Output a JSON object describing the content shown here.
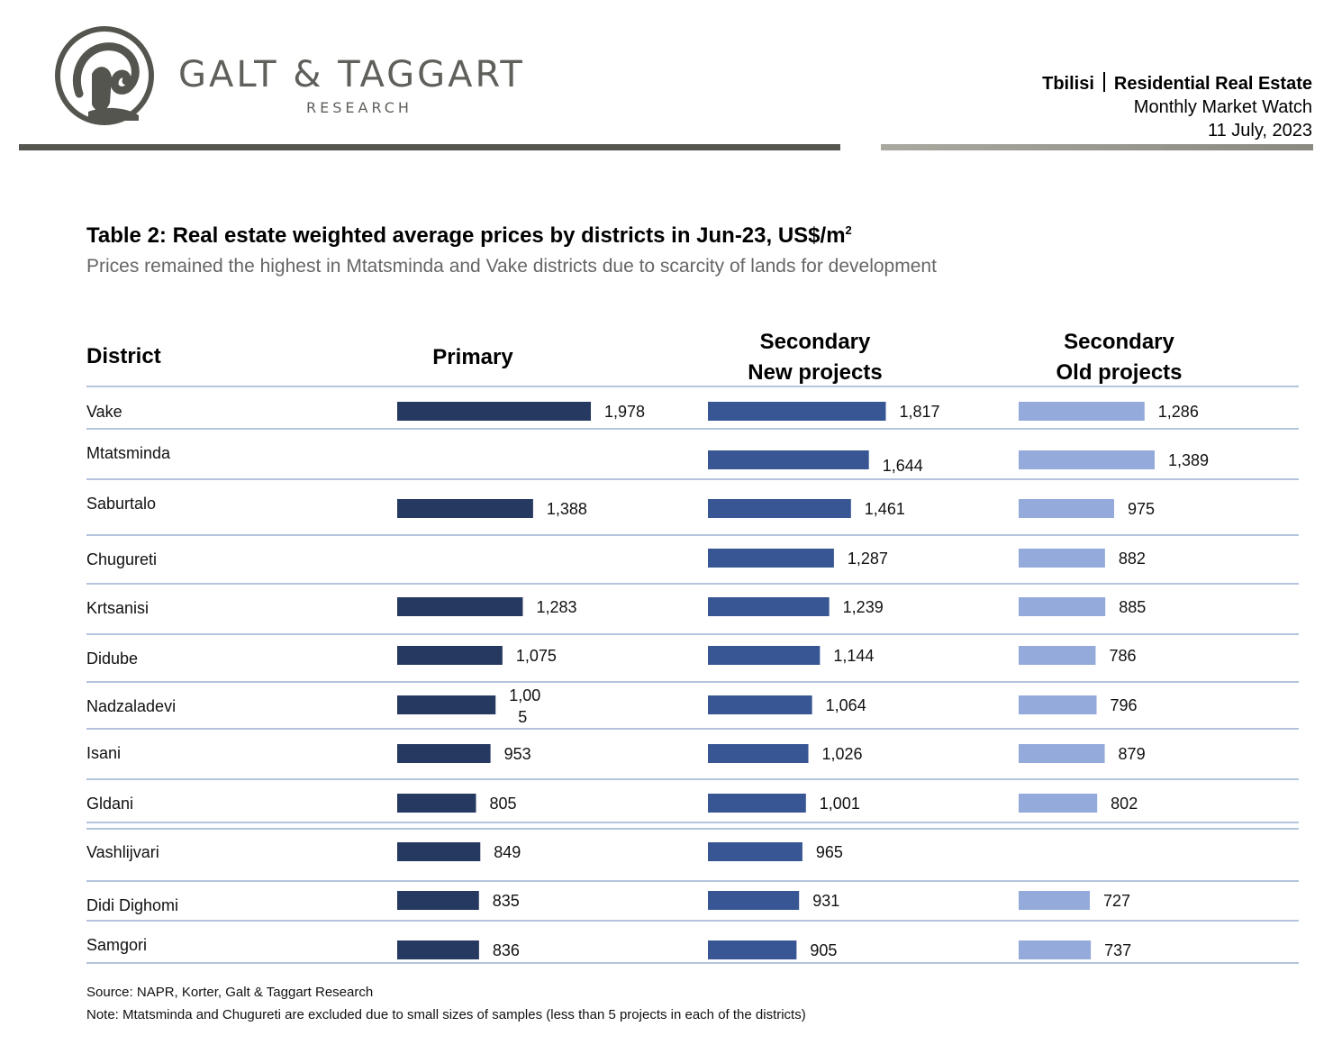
{
  "header": {
    "brand_name": "GALT & TAGGART",
    "brand_sub": "RESEARCH",
    "city": "Tbilisi",
    "report_name": "Residential Real Estate",
    "report_type": "Monthly Market Watch",
    "date": "11 July, 2023"
  },
  "colors": {
    "primary": "#253961",
    "secondary_new": "#375693",
    "secondary_old": "#93aadb",
    "row_line": "#9bb0d4"
  },
  "icons": [
    "ram-logo-icon"
  ],
  "chart_data": {
    "type": "bar",
    "title": "Table 2: Real estate weighted average prices by districts in Jun-23, US$/m",
    "title_superscript": "2",
    "subtitle": "Prices remained the highest in Mtatsminda and Vake districts due to scarcity of lands for development",
    "category_header": "District",
    "categories": [
      "Vake",
      "Mtatsminda",
      "Saburtalo",
      "Chugureti",
      "Krtsanisi",
      "Didube",
      "Nadzaladevi",
      "Isani",
      "Gldani",
      "Vashlijvari",
      "Didi Dighomi",
      "Samgori"
    ],
    "series": [
      {
        "name": "Primary",
        "values": [
          1978,
          null,
          1388,
          null,
          1283,
          1075,
          1005,
          953,
          805,
          849,
          835,
          836
        ],
        "labels": [
          "1,978",
          "",
          "1,388",
          "",
          "1,283",
          "1,075",
          "1,00\n5",
          "953",
          "805",
          "849",
          "835",
          "836"
        ]
      },
      {
        "name": "Secondary\nNew projects",
        "values": [
          1817,
          1644,
          1461,
          1287,
          1239,
          1144,
          1064,
          1026,
          1001,
          965,
          931,
          905
        ],
        "labels": [
          "1,817",
          "1,644",
          "1,461",
          "1,287",
          "1,239",
          "1,144",
          "1,064",
          "1,026",
          "1,001",
          "965",
          "931",
          "905"
        ]
      },
      {
        "name": "Secondary\nOld projects",
        "values": [
          1286,
          1389,
          975,
          882,
          885,
          786,
          796,
          879,
          802,
          null,
          727,
          737
        ],
        "labels": [
          "1,286",
          "1,389",
          "975",
          "882",
          "885",
          "786",
          "796",
          "879",
          "802",
          "",
          "727",
          "737"
        ]
      }
    ],
    "grid": false,
    "legend": "none"
  },
  "footer": {
    "source": "Source: NAPR, Korter, Galt & Taggart Research",
    "note": "Note: Mtatsminda and Chugureti are excluded due to small sizes of samples (less than 5 projects in each of the districts)"
  }
}
